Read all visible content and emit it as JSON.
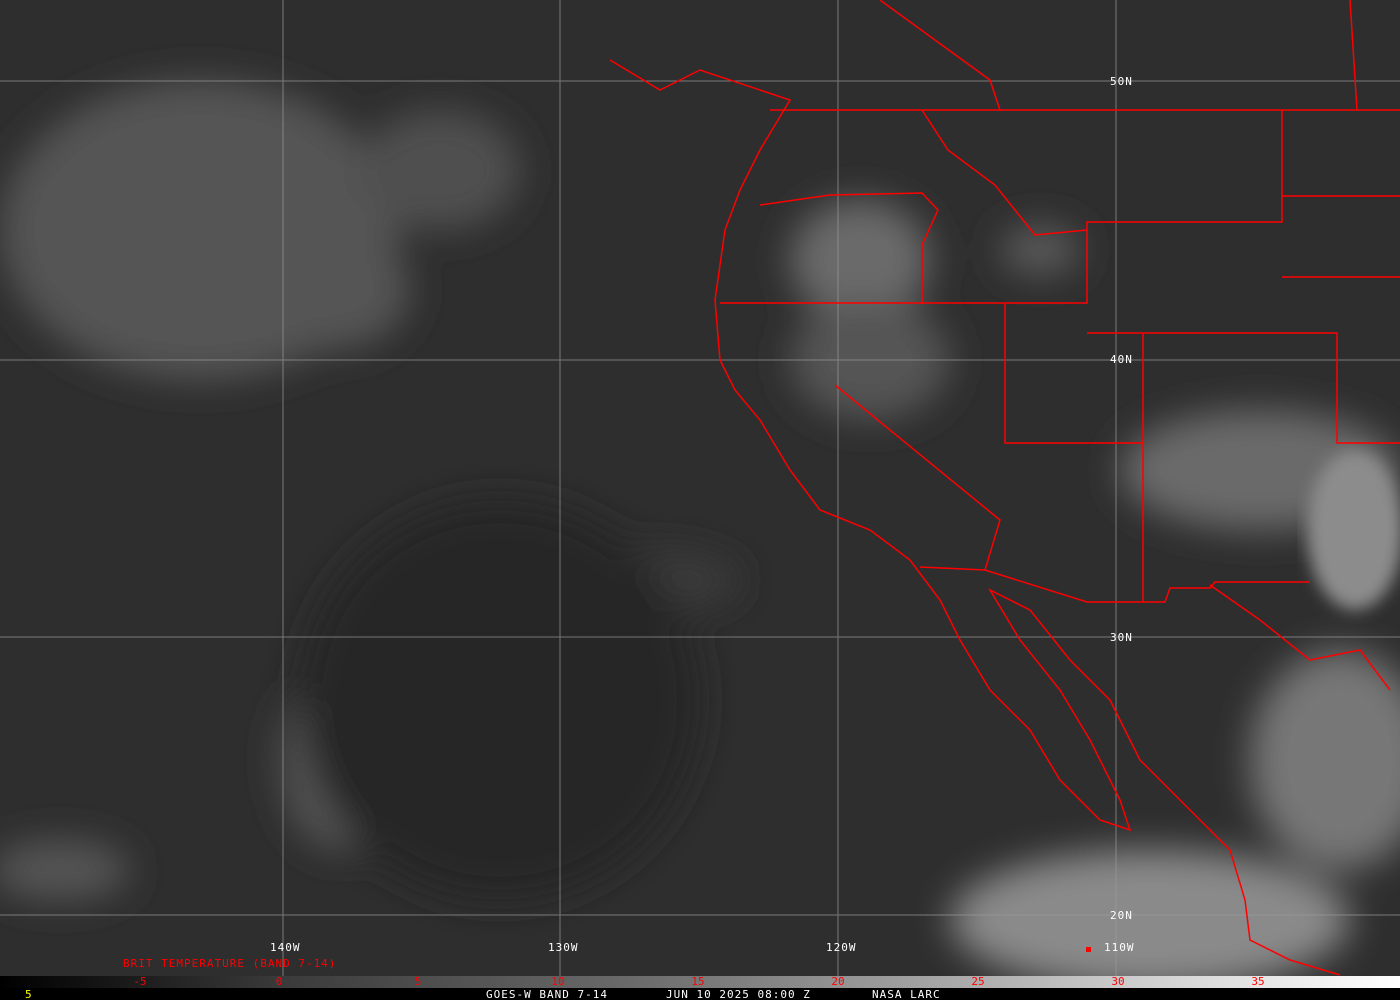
{
  "title_bar": {
    "satellite": "GOES-W BAND 7-14",
    "datetime": "JUN 10 2025 08:00 Z",
    "source": "NASA LARC",
    "left_marker": "5"
  },
  "colorbar": {
    "label": "BRIT TEMPERATURE (BAND 7-14)",
    "ticks": [
      "-5",
      "0",
      "5",
      "10",
      "15",
      "20",
      "25",
      "30",
      "35"
    ],
    "color": "#ff0000"
  },
  "grid": {
    "longitudes": [
      "140W",
      "130W",
      "120W",
      "110W"
    ],
    "latitudes": [
      "50N",
      "40N",
      "30N",
      "20N"
    ]
  },
  "colors": {
    "borders": "#ff0000",
    "grid": "#a0a0a0",
    "text": "#ffffff",
    "marker": "#ffff00"
  }
}
